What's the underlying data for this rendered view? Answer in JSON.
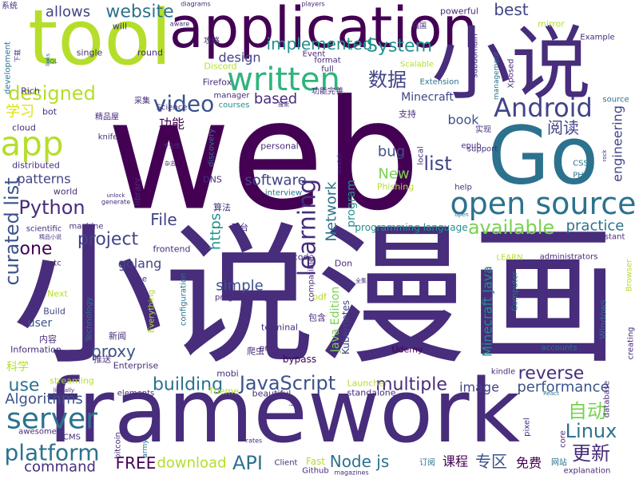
{
  "words": [
    "web",
    "framework",
    "tool",
    "application",
    "小说",
    "Go",
    "小说漫画",
    "open source",
    "Android",
    "written",
    "video",
    "app",
    "server",
    "platform",
    "Python",
    "curated list",
    "designed",
    "website",
    "allows",
    "System",
    "implemented",
    "数据",
    "best",
    "learning",
    "Linux",
    "自动",
    "更新",
    "reverse",
    "performance",
    "practice",
    "available",
    "JavaScript",
    "multiple",
    "building",
    "use",
    "Algorithms",
    "API",
    "FREE",
    "download",
    "Node js",
    "专区",
    "课程",
    "免费",
    "command",
    "proxy",
    "project",
    "one",
    "File",
    "https",
    "golang",
    "design",
    "based",
    "功能",
    "学习",
    "software",
    "Network",
    "program",
    "bug",
    "list",
    "New",
    "Phishing",
    "book",
    "阅读",
    "Minecraft",
    "Minecraft Java",
    "Java Edition",
    "simple",
    "image",
    "engineering",
    "programming language",
    "Kubernetes",
    "user",
    "科学",
    "内容",
    "Information",
    "Build",
    "bypass",
    "Udemy",
    "Enterprise",
    "推送",
    "爬虫",
    "terminal",
    "end",
    "mobi",
    "Theme",
    "beautiful",
    "Launcher",
    "standalone",
    "elements",
    "CMS",
    "Github",
    "Client",
    "Fast",
    "explanation",
    "administrators",
    "accounts",
    "kindle",
    "Windows",
    "Browser",
    "creating",
    "database",
    "LEARN",
    "Computer",
    "Don",
    "code",
    "pdf",
    "包含",
    "compatible",
    "frontend",
    "平台",
    "算法",
    "DNS",
    "interview",
    "machine",
    "scientific",
    "library",
    "world",
    "generate",
    "unlock",
    "patterns",
    "distributed",
    "cloud",
    "bot",
    "Rich",
    "development",
    "single",
    "round",
    "will",
    "aware",
    "diagrams",
    "players",
    "系统",
    "攻略",
    "Discord",
    "Firefox",
    "manager",
    "courses",
    "采集",
    "Science",
    "精品屋",
    "knife",
    "专业性",
    "杂志",
    "discovery",
    "personal",
    "Event",
    "format",
    "full",
    "功能完善",
    "搜索",
    "support",
    "epub",
    "local",
    "支持",
    "实现",
    "CSS",
    "PHP",
    "help",
    "open",
    "rock",
    "powerful",
    "强国",
    "subdomain",
    "mirror",
    "Example",
    "management",
    "Xposed",
    "source",
    "Extension",
    "Scalable",
    "scratch",
    "assistant",
    "programming",
    "configuration",
    "Everything",
    "Technology",
    "line",
    "etc",
    "精品小说",
    "Next",
    "全集",
    "新闻",
    "streaming",
    "literally",
    "awesome",
    "bitcoin",
    "army",
    "rates",
    "magazines",
    "订阅",
    "网站",
    "pixel",
    "core",
    "React",
    "js",
    "links",
    "下载",
    "SQL"
  ]
}
